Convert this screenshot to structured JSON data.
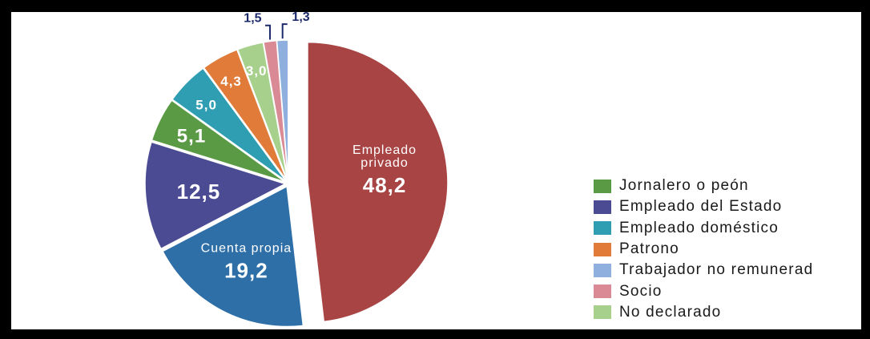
{
  "chart_data": {
    "type": "pie",
    "title": "",
    "slices": [
      {
        "name": "",
        "label_text": "Empleado privado",
        "label": "48,2",
        "value": 48.2,
        "color": "#a84444"
      },
      {
        "name": "Cuenta propia",
        "label_text": "Cuenta propia",
        "label": "19,2",
        "value": 19.2,
        "color": "#2e6fa8"
      },
      {
        "name": "Empleado del Estado",
        "label_text": "",
        "label": "12,5",
        "value": 12.5,
        "color": "#4b4b94"
      },
      {
        "name": "Jornalero o peón",
        "label_text": "",
        "label": "5,1",
        "value": 5.1,
        "color": "#5a9a45"
      },
      {
        "name": "Empleado doméstico",
        "label_text": "",
        "label": "5,0",
        "value": 5.0,
        "color": "#2f9eb3"
      },
      {
        "name": "Patrono",
        "label_text": "",
        "label": "4,3",
        "value": 4.3,
        "color": "#e07b39"
      },
      {
        "name": "No declarado",
        "label_text": "",
        "label": "3,0",
        "value": 3.0,
        "color": "#a8d08d"
      },
      {
        "name": "Socio",
        "label_text": "",
        "label": "1,5",
        "value": 1.5,
        "color": "#d98a94"
      },
      {
        "name": "Trabajador no remunerad",
        "label_text": "",
        "label": "1,3",
        "value": 1.3,
        "color": "#8fb0de"
      }
    ],
    "legend": {
      "placement": "right",
      "entries": [
        {
          "label": "Jornalero o peón",
          "color": "#5a9a45"
        },
        {
          "label": "Empleado del Estado",
          "color": "#4b4b94"
        },
        {
          "label": "Empleado doméstico",
          "color": "#2f9eb3"
        },
        {
          "label": "Patrono",
          "color": "#e07b39"
        },
        {
          "label": "Trabajador no remunerad",
          "color": "#8fb0de"
        },
        {
          "label": "Socio",
          "color": "#d98a94"
        },
        {
          "label": "No declarado",
          "color": "#a8d08d"
        }
      ]
    }
  }
}
